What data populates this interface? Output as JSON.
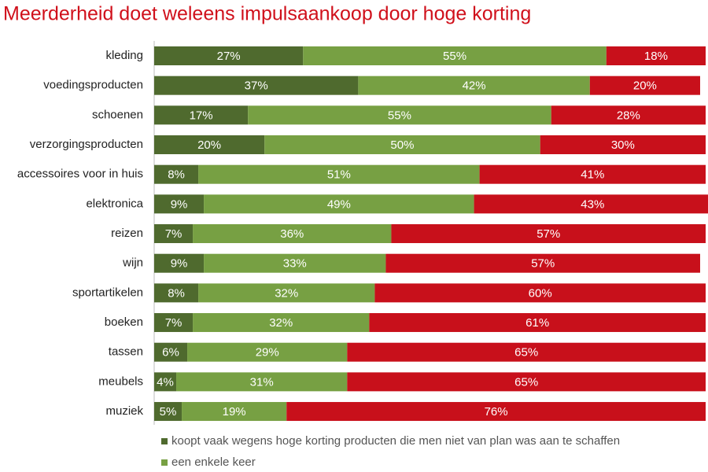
{
  "chart_data": {
    "type": "stacked-bar-horizontal",
    "title": "Meerderheid doet weleens impulsaankoop door hoge korting",
    "categories": [
      "kleding",
      "voedingsproducten",
      "schoenen",
      "verzorgingsproducten",
      "accessoires voor in huis",
      "elektronica",
      "reizen",
      "wijn",
      "sportartikelen",
      "boeken",
      "tassen",
      "meubels",
      "muziek"
    ],
    "xlim": [
      0,
      100
    ],
    "series": [
      {
        "name": "koopt vaak wegens hoge korting producten die men niet van plan was aan te  schaffen",
        "color": "#4f6a2e",
        "values": [
          27,
          37,
          17,
          20,
          8,
          9,
          7,
          9,
          8,
          7,
          6,
          4,
          5
        ],
        "value_labels": [
          "27%",
          "37%",
          "17%",
          "20%",
          "8%",
          "9%",
          "7%",
          "9%",
          "8%",
          "7%",
          "6%",
          "4%",
          "5%"
        ]
      },
      {
        "name": "een enkele keer",
        "color": "#77a043",
        "values": [
          55,
          42,
          55,
          50,
          51,
          49,
          36,
          33,
          32,
          32,
          29,
          31,
          19
        ],
        "value_labels": [
          "55%",
          "42%",
          "55%",
          "50%",
          "51%",
          "49%",
          "36%",
          "33%",
          "32%",
          "32%",
          "29%",
          "31%",
          "19%"
        ]
      },
      {
        "name": null,
        "color": "#c8101b",
        "values": [
          18,
          20,
          28,
          30,
          41,
          43,
          57,
          57,
          60,
          61,
          65,
          65,
          76
        ],
        "value_labels": [
          "18%",
          "20%",
          "28%",
          "30%",
          "41%",
          "43%",
          "57%",
          "57%",
          "60%",
          "61%",
          "65%",
          "65%",
          "76%"
        ]
      }
    ]
  }
}
